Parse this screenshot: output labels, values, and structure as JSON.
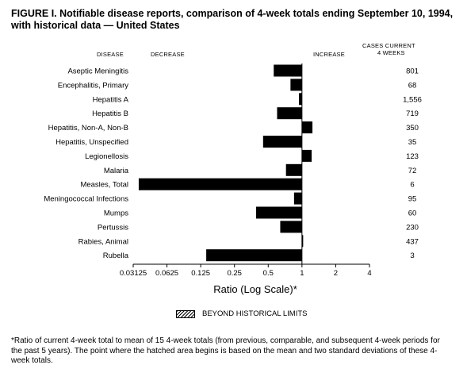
{
  "figure": {
    "title": "FIGURE I. Notifiable disease reports, comparison of 4-week totals ending September 10, 1994, with historical data — United States",
    "col_disease": "DISEASE",
    "col_decrease": "DECREASE",
    "col_increase": "INCREASE",
    "col_cases_line1": "CASES CURRENT",
    "col_cases_line2": "4 WEEKS",
    "legend_label": "BEYOND HISTORICAL LIMITS",
    "footnote": "*Ratio of current 4-week total to mean of 15 4-week totals (from previous, comparable, and subsequent 4-week periods for the past 5 years). The point where the hatched area begins is based on the mean and two standard deviations of these 4-week totals."
  },
  "chart_data": {
    "type": "bar",
    "orientation": "horizontal",
    "xscale": "log2",
    "xlabel": "Ratio (Log Scale)*",
    "xlim": [
      0.03125,
      4
    ],
    "baseline": 1,
    "xticks": [
      "0.03125",
      "0.0625",
      "0.125",
      "0.25",
      "0.5",
      "1",
      "2",
      "4"
    ],
    "categories": [
      "Aseptic Meningitis",
      "Encephalitis, Primary",
      "Hepatitis A",
      "Hepatitis B",
      "Hepatitis, Non-A, Non-B",
      "Hepatitis, Unspecified",
      "Legionellosis",
      "Malaria",
      "Measles, Total",
      "Meningococcal Infections",
      "Mumps",
      "Pertussis",
      "Rabies, Animal",
      "Rubella"
    ],
    "values": [
      0.56,
      0.79,
      0.94,
      0.6,
      1.24,
      0.45,
      1.22,
      0.72,
      0.035,
      0.85,
      0.39,
      0.64,
      1.02,
      0.14
    ],
    "cases_current_4_weeks": [
      "801",
      "68",
      "1,556",
      "719",
      "350",
      "35",
      "123",
      "72",
      "6",
      "95",
      "60",
      "230",
      "437",
      "3"
    ]
  }
}
